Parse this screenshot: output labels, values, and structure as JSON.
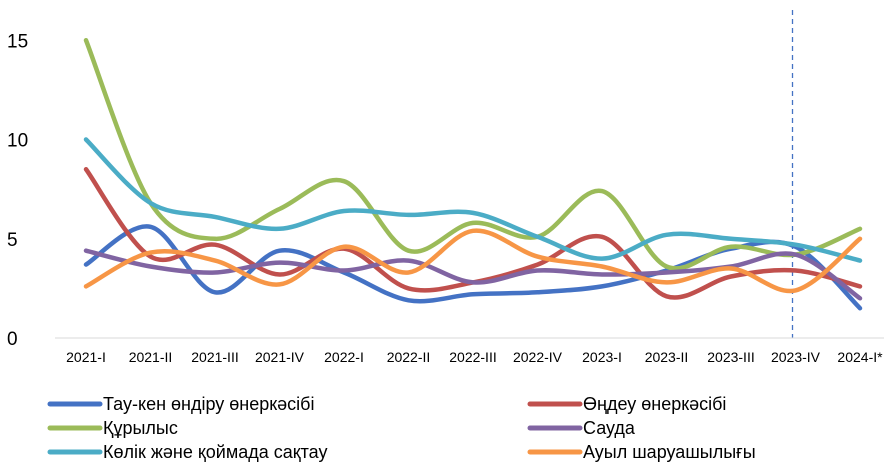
{
  "chart_data": {
    "type": "line",
    "title": "",
    "xlabel": "",
    "ylabel": "",
    "categories": [
      "2021-I",
      "2021-II",
      "2021-III",
      "2021-IV",
      "2022-I",
      "2022-II",
      "2022-III",
      "2022-IV",
      "2023-I",
      "2023-II",
      "2023-III",
      "2023-IV",
      "2024-I*"
    ],
    "y_ticks": [
      "0",
      "5",
      "10",
      "15"
    ],
    "ylim": [
      0,
      15
    ],
    "grid": false,
    "legend_position": "bottom",
    "vertical_marker": {
      "category": "2023-IV",
      "style": "dashed",
      "color": "#4472C4"
    },
    "series": [
      {
        "name": "Тау-кен өндіру өнеркәсібі",
        "color": "#4472C4",
        "values": [
          3.7,
          5.6,
          2.3,
          4.4,
          3.3,
          1.9,
          2.2,
          2.3,
          2.6,
          3.4,
          4.5,
          4.6,
          1.5
        ]
      },
      {
        "name": "Өңдеу өнеркәсібі",
        "color": "#C0504D",
        "values": [
          8.5,
          4.1,
          4.7,
          3.2,
          4.5,
          2.5,
          2.8,
          3.7,
          5.1,
          2.1,
          3.1,
          3.4,
          2.6
        ]
      },
      {
        "name": "Құрылыс",
        "color": "#9BBB59",
        "values": [
          15.0,
          6.8,
          5.0,
          6.5,
          7.9,
          4.4,
          5.8,
          5.1,
          7.4,
          3.6,
          4.6,
          4.2,
          5.5
        ]
      },
      {
        "name": "Сауда",
        "color": "#8064A2",
        "values": [
          4.4,
          3.6,
          3.3,
          3.8,
          3.4,
          3.9,
          2.8,
          3.4,
          3.2,
          3.3,
          3.6,
          4.2,
          2.0
        ]
      },
      {
        "name": "Көлік және қоймада сақтау",
        "color": "#4BACC6",
        "values": [
          10.0,
          6.8,
          6.1,
          5.5,
          6.4,
          6.2,
          6.3,
          5.1,
          4.0,
          5.2,
          5.0,
          4.7,
          3.9
        ]
      },
      {
        "name": "Ауыл шаруашылығы",
        "color": "#F79646",
        "values": [
          2.6,
          4.3,
          3.9,
          2.7,
          4.6,
          3.3,
          5.4,
          4.1,
          3.6,
          2.8,
          3.5,
          2.4,
          5.0
        ]
      }
    ]
  }
}
